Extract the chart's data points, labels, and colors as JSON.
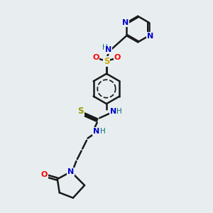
{
  "background_color": "#e8eef0",
  "bond_color": "#1a1a1a",
  "bond_width": 1.8,
  "colors": {
    "N": "#0000cc",
    "O": "#ff0000",
    "S_sulfonamide": "#ccaa00",
    "S_thio": "#999900",
    "H": "#007070",
    "C": "#1a1a1a"
  },
  "figsize": [
    3.0,
    3.0
  ],
  "dpi": 100
}
